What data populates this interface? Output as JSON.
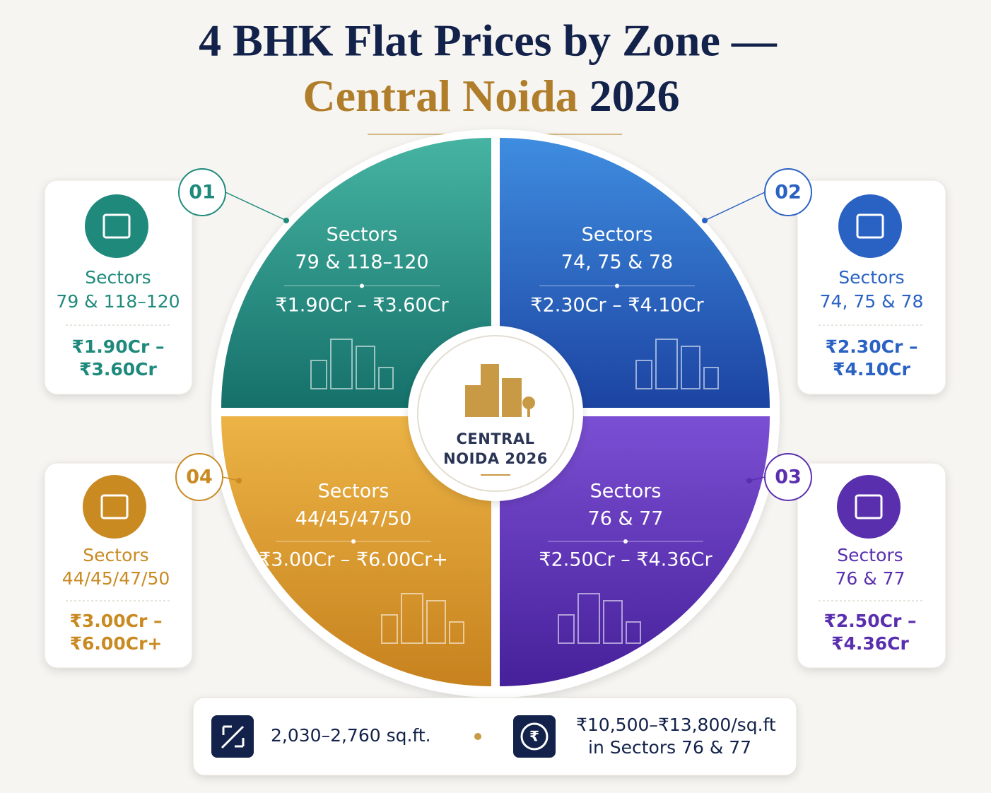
{
  "title": {
    "line1": "4 BHK Flat Prices by Zone —",
    "line2_highlight": "Central Noida",
    "line2_rest": "2026"
  },
  "center": {
    "line1": "CENTRAL",
    "line2": "NOIDA 2026"
  },
  "zones": [
    {
      "number": "01",
      "sectors_label": "Sectors",
      "sectors": "79 & 118–120",
      "price": "₹1.90Cr – ₹3.60Cr",
      "card_price_line1": "₹1.90Cr –",
      "card_price_line2": "₹3.60Cr",
      "color": "#1f8a7c"
    },
    {
      "number": "02",
      "sectors_label": "Sectors",
      "sectors": "74, 75 & 78",
      "price": "₹2.30Cr – ₹4.10Cr",
      "card_price_line1": "₹2.30Cr –",
      "card_price_line2": "₹4.10Cr",
      "color": "#2a62c4"
    },
    {
      "number": "03",
      "sectors_label": "Sectors",
      "sectors": "76 & 77",
      "price": "₹2.50Cr – ₹4.36Cr",
      "card_price_line1": "₹2.50Cr –",
      "card_price_line2": "₹4.36Cr",
      "color": "#5a2fae"
    },
    {
      "number": "04",
      "sectors_label": "Sectors",
      "sectors": "44/45/47/50",
      "price": "₹3.00Cr – ₹6.00Cr+",
      "card_price_line1": "₹3.00Cr –",
      "card_price_line2": "₹6.00Cr+",
      "color": "#c98a22"
    }
  ],
  "footer": {
    "area": "2,030–2,760 sq.ft.",
    "rate_line1": "₹10,500–₹13,800/sq.ft",
    "rate_line2": "in Sectors 76 & 77"
  }
}
